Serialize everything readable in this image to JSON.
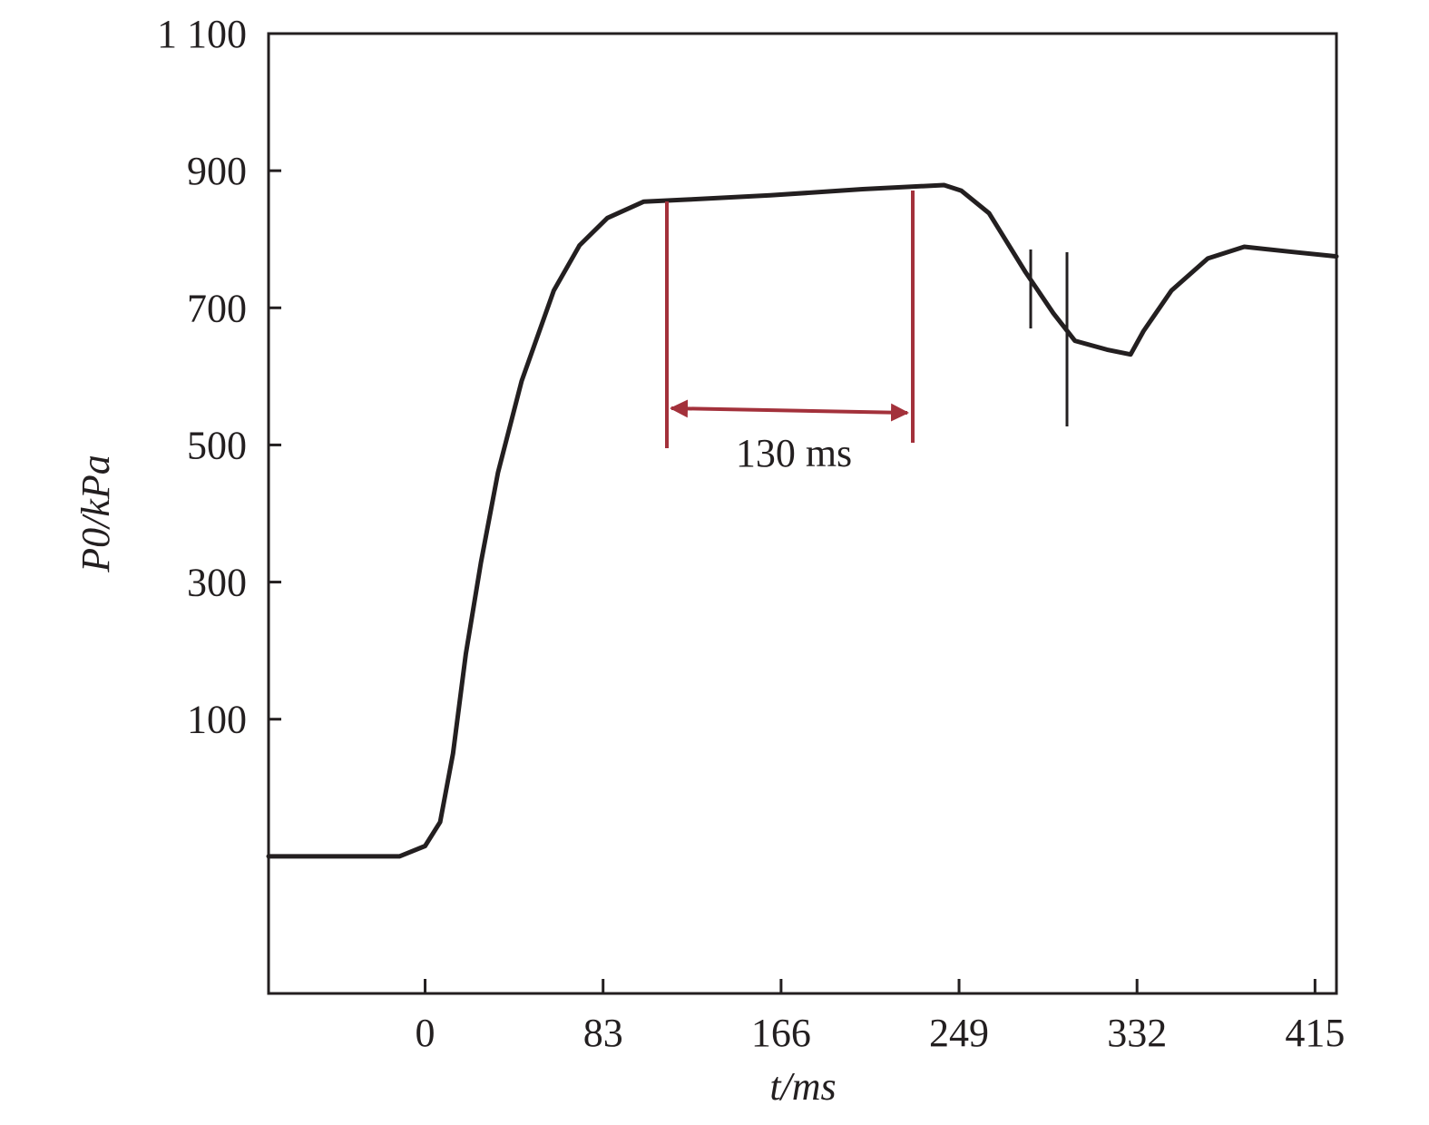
{
  "chart_data": {
    "type": "line",
    "xlabel": "t/ms",
    "ylabel": "P0/kPa",
    "annotation": "130 ms",
    "xlim": [
      -73,
      425
    ],
    "ylim": [
      -300,
      1100
    ],
    "xticks": [
      0,
      83,
      166,
      249,
      332,
      415
    ],
    "yticks": [
      100,
      300,
      500,
      700,
      900,
      {
        "value": 1100,
        "label": "1 100"
      }
    ],
    "x": [
      -73,
      -12,
      0,
      7,
      13,
      19,
      26,
      34,
      45,
      60,
      72,
      85,
      102,
      123,
      161,
      204,
      242,
      250,
      263,
      280,
      293,
      303,
      318,
      329,
      335,
      348,
      365,
      382,
      403,
      425
    ],
    "series": [
      {
        "color": "#231f20",
        "values": [
          -100,
          -100,
          -85,
          -50,
          50,
          195,
          328,
          460,
          593,
          725,
          791,
          831,
          855,
          858,
          864,
          873,
          879,
          871,
          838,
          752,
          692,
          652,
          639,
          632,
          666,
          725,
          772,
          789,
          782,
          775
        ]
      }
    ]
  }
}
